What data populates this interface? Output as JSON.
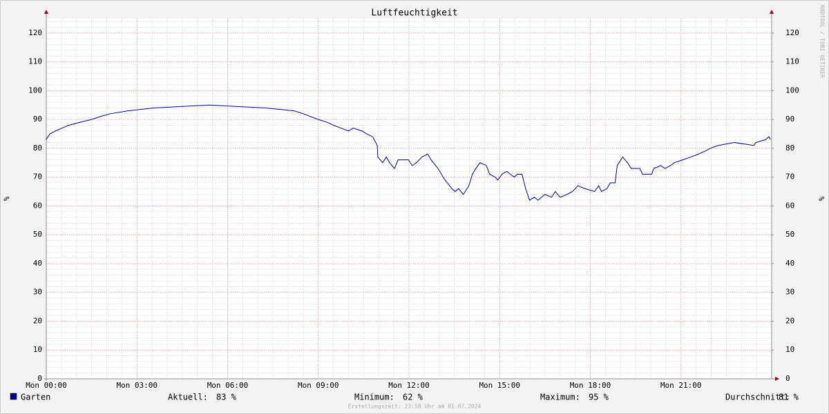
{
  "chart_data": {
    "type": "line",
    "title": "Luftfeuchtigkeit",
    "y_label": "%",
    "y2_label": "%",
    "watermark": "RRDTOOL / TOBI OETIKER",
    "footer": "Erstellungszeit: 23:58 Uhr am 01.07.2024",
    "xlim": [
      0,
      24
    ],
    "xticks": [
      {
        "value": 0,
        "label": "Mon 00:00"
      },
      {
        "value": 3,
        "label": "Mon 03:00"
      },
      {
        "value": 6,
        "label": "Mon 06:00"
      },
      {
        "value": 9,
        "label": "Mon 09:00"
      },
      {
        "value": 12,
        "label": "Mon 12:00"
      },
      {
        "value": 15,
        "label": "Mon 15:00"
      },
      {
        "value": 18,
        "label": "Mon 18:00"
      },
      {
        "value": 21,
        "label": "Mon 21:00"
      }
    ],
    "ylim": [
      0,
      125
    ],
    "yticks": [
      0,
      10,
      20,
      30,
      40,
      50,
      60,
      70,
      80,
      90,
      100,
      110,
      120
    ],
    "y2lim": [
      0,
      125
    ],
    "y2ticks": [
      0,
      10,
      20,
      30,
      40,
      50,
      60,
      70,
      80,
      90,
      100,
      110,
      120
    ],
    "grid": true,
    "x": [
      0,
      0.05,
      0.12,
      0.3,
      0.52,
      0.75,
      1.1,
      1.5,
      1.78,
      2.12,
      2.71,
      3.54,
      5.4,
      7.26,
      8.2,
      8.5,
      8.75,
      9.0,
      9.3,
      9.5,
      9.75,
      10.0,
      10.15,
      10.45,
      10.6,
      10.8,
      10.95,
      10.97,
      11.13,
      11.25,
      11.36,
      11.52,
      11.64,
      11.98,
      12.11,
      12.25,
      12.43,
      12.62,
      12.73,
      12.96,
      13.19,
      13.42,
      13.53,
      13.64,
      13.8,
      13.98,
      14.1,
      14.21,
      14.35,
      14.56,
      14.67,
      14.85,
      14.94,
      15.08,
      15.24,
      15.35,
      15.49,
      15.58,
      15.74,
      15.86,
      15.99,
      16.15,
      16.27,
      16.5,
      16.72,
      16.84,
      17.0,
      17.23,
      17.41,
      17.59,
      17.82,
      18.14,
      18.28,
      18.37,
      18.55,
      18.66,
      18.82,
      18.89,
      19.07,
      19.23,
      19.35,
      19.64,
      19.73,
      20.03,
      20.1,
      20.33,
      20.47,
      20.65,
      20.78,
      21.06,
      21.33,
      21.58,
      21.79,
      21.97,
      22.24,
      22.77,
      23.41,
      23.48,
      23.8,
      23.91,
      23.96
    ],
    "series": [
      {
        "name": "Garten",
        "color": "#000099",
        "values": [
          83,
          84,
          85,
          86,
          87,
          88,
          89,
          90,
          91,
          92,
          93,
          94,
          95,
          94,
          93,
          92,
          91,
          90,
          89,
          88,
          87,
          86,
          87,
          86,
          85,
          84,
          81,
          77,
          75,
          77,
          75,
          73,
          76,
          76,
          74,
          75,
          77,
          78,
          76,
          73,
          69,
          66,
          65,
          66,
          64,
          67,
          71,
          73,
          75,
          74,
          71,
          70,
          69,
          71,
          72,
          71,
          70,
          71,
          71,
          66,
          62,
          63,
          62,
          64,
          63,
          65,
          63,
          64,
          65,
          67,
          66,
          65,
          67,
          65,
          66,
          68,
          68,
          74,
          77,
          75,
          73,
          73,
          71,
          71,
          73,
          74,
          73,
          74,
          75,
          76,
          77,
          78,
          79,
          80,
          81,
          82,
          81,
          82,
          83,
          84,
          83
        ]
      }
    ],
    "legend_stats": [
      {
        "label": "Aktuell:",
        "value": "83 %"
      },
      {
        "label": "Minimum:",
        "value": "62 %"
      },
      {
        "label": "Maximum:",
        "value": "95 %"
      },
      {
        "label": "Durchschnitt:",
        "value": "81 %"
      }
    ]
  }
}
